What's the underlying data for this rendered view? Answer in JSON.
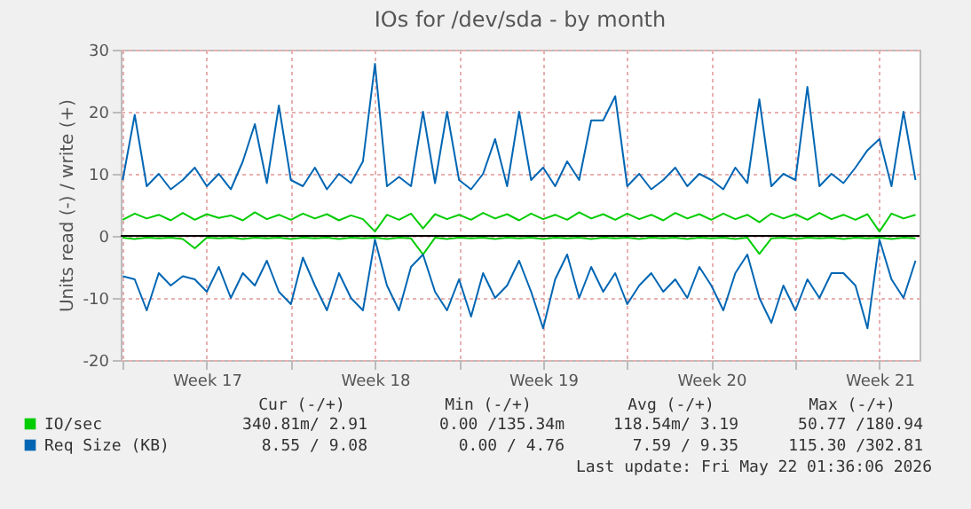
{
  "chart_data": {
    "type": "line",
    "title": "IOs for /dev/sda - by month",
    "ylabel": "Units read (-) / write (+)",
    "x": [
      "2026-04-20T00:00",
      "2026-04-20T12:00",
      "2026-04-21T00:00",
      "2026-04-21T12:00",
      "2026-04-22T00:00",
      "2026-04-22T12:00",
      "2026-04-23T00:00",
      "2026-04-23T12:00",
      "2026-04-24T00:00",
      "2026-04-24T12:00",
      "2026-04-25T00:00",
      "2026-04-25T12:00",
      "2026-04-26T00:00",
      "2026-04-26T12:00",
      "2026-04-27T00:00",
      "2026-04-27T12:00",
      "2026-04-28T00:00",
      "2026-04-28T12:00",
      "2026-04-29T00:00",
      "2026-04-29T12:00",
      "2026-04-30T00:00",
      "2026-04-30T12:00",
      "2026-05-01T00:00",
      "2026-05-01T12:00",
      "2026-05-02T00:00",
      "2026-05-02T12:00",
      "2026-05-03T00:00",
      "2026-05-03T12:00",
      "2026-05-04T00:00",
      "2026-05-04T12:00",
      "2026-05-05T00:00",
      "2026-05-05T12:00",
      "2026-05-06T00:00",
      "2026-05-06T12:00",
      "2026-05-07T00:00",
      "2026-05-07T12:00",
      "2026-05-08T00:00",
      "2026-05-08T12:00",
      "2026-05-09T00:00",
      "2026-05-09T12:00",
      "2026-05-10T00:00",
      "2026-05-10T12:00",
      "2026-05-11T00:00",
      "2026-05-11T12:00",
      "2026-05-12T00:00",
      "2026-05-12T12:00",
      "2026-05-13T00:00",
      "2026-05-13T12:00",
      "2026-05-14T00:00",
      "2026-05-14T12:00",
      "2026-05-15T00:00",
      "2026-05-15T12:00",
      "2026-05-16T00:00",
      "2026-05-16T12:00",
      "2026-05-17T00:00",
      "2026-05-17T12:00",
      "2026-05-18T00:00",
      "2026-05-18T12:00",
      "2026-05-19T00:00",
      "2026-05-19T12:00",
      "2026-05-20T00:00",
      "2026-05-20T12:00",
      "2026-05-21T00:00",
      "2026-05-21T12:00",
      "2026-05-22T00:00",
      "2026-05-22T12:00",
      "2026-05-23T00:00"
    ],
    "series": [
      {
        "color": "#00cc00",
        "values": [
          -0.3,
          -0.5,
          -0.3,
          -0.4,
          -0.3,
          -0.5,
          -2,
          -0.3,
          -0.4,
          -0.3,
          -0.5,
          -0.3,
          -0.4,
          -0.3,
          -0.5,
          -0.3,
          -0.4,
          -0.3,
          -0.5,
          -0.3,
          -0.4,
          -0.3,
          -0.5,
          -0.3,
          -0.4,
          -3,
          -0.3,
          -0.5,
          -0.3,
          -0.4,
          -0.3,
          -0.5,
          -0.3,
          -0.4,
          -0.3,
          -0.5,
          -0.3,
          -0.4,
          -0.3,
          -0.5,
          -0.3,
          -0.4,
          -0.3,
          -0.5,
          -0.3,
          -0.4,
          -0.3,
          -0.5,
          -0.3,
          -0.4,
          -0.3,
          -0.5,
          -0.3,
          -2.9,
          -0.4,
          -0.3,
          -0.5,
          -0.3,
          -0.4,
          -0.3,
          -0.5,
          -0.3,
          -0.4,
          -0.3,
          -0.5,
          -0.3,
          -0.4
        ]
      },
      {
        "name": "IO/sec",
        "color": "#00cc00",
        "values": [
          2.6,
          3.6,
          2.8,
          3.4,
          2.5,
          3.7,
          2.6,
          3.5,
          2.9,
          3.3,
          2.5,
          3.8,
          2.7,
          3.4,
          2.6,
          3.6,
          2.8,
          3.5,
          2.5,
          3.3,
          2.7,
          0.7,
          3.4,
          2.6,
          3.6,
          1.2,
          3.5,
          2.7,
          3.4,
          2.6,
          3.7,
          2.8,
          3.5,
          2.5,
          3.6,
          2.7,
          3.4,
          2.6,
          3.8,
          2.8,
          3.5,
          2.6,
          3.6,
          2.7,
          3.4,
          2.5,
          3.7,
          2.8,
          3.5,
          2.6,
          3.6,
          2.7,
          3.4,
          2.2,
          3.6,
          2.8,
          3.5,
          2.6,
          3.7,
          2.7,
          3.4,
          2.6,
          3.5,
          0.7,
          3.6,
          2.8,
          3.4
        ]
      },
      {
        "color": "#0066b3",
        "values": [
          -6.5,
          -7,
          -12,
          -6,
          -8,
          -6.5,
          -7,
          -9,
          -5,
          -10,
          -6,
          -8,
          -4,
          -9,
          -11,
          -3.5,
          -8,
          -12,
          -6,
          -10,
          -12,
          -0.6,
          -8,
          -12,
          -5,
          -3,
          -9,
          -12,
          -7,
          -13,
          -6,
          -10,
          -8,
          -4,
          -9,
          -14.9,
          -7,
          -3,
          -10,
          -5,
          -9,
          -6,
          -11,
          -8,
          -6,
          -9,
          -7,
          -10,
          -5,
          -8,
          -12,
          -6,
          -3,
          -10,
          -14,
          -8,
          -12,
          -7,
          -10,
          -6,
          -6,
          -8,
          -14.9,
          -0.6,
          -7,
          -10,
          -4
        ]
      },
      {
        "name": "Req Size (KB)",
        "color": "#0066b3",
        "values": [
          9,
          19.5,
          8,
          10,
          7.5,
          9,
          11,
          8,
          10,
          7.5,
          12,
          18,
          8.5,
          21,
          9,
          8,
          11,
          7.5,
          10,
          8.5,
          12,
          27.7,
          8,
          9.5,
          8,
          20,
          8.5,
          20,
          9,
          7.5,
          10,
          15.6,
          8,
          20,
          9,
          11,
          8,
          12,
          9,
          18.6,
          18.6,
          22.5,
          8,
          10,
          7.5,
          9,
          11,
          8,
          10,
          9,
          7.5,
          11,
          8.5,
          22,
          8,
          10,
          9,
          24,
          8,
          10,
          8.5,
          11,
          13.8,
          15.6,
          8,
          20,
          9
        ]
      }
    ],
    "xlim": [
      "2026-04-19T22:00",
      "2026-05-23T04:00"
    ],
    "xticks": [
      {
        "value": "2026-04-20T00:00",
        "label": null
      },
      {
        "value": "2026-04-23T12:00",
        "label": "Week 17"
      },
      {
        "value": "2026-04-27T00:00",
        "label": null
      },
      {
        "value": "2026-04-30T12:00",
        "label": "Week 18"
      },
      {
        "value": "2026-05-04T00:00",
        "label": null
      },
      {
        "value": "2026-05-07T12:00",
        "label": "Week 19"
      },
      {
        "value": "2026-05-11T00:00",
        "label": null
      },
      {
        "value": "2026-05-14T12:00",
        "label": "Week 20"
      },
      {
        "value": "2026-05-18T00:00",
        "label": null
      },
      {
        "value": "2026-05-21T12:00",
        "label": "Week 21"
      }
    ],
    "ylim": [
      -20,
      30
    ],
    "yticks": [
      -20,
      -10,
      0,
      10,
      20,
      30
    ],
    "grid": true,
    "legend": "bottom",
    "ref_lines": [
      {
        "axis": "y",
        "value": 0,
        "color": "#000000"
      }
    ],
    "annotations": [
      "Cur (-/+)",
      "Min (-/+)",
      "Avg (-/+)",
      "Max (-/+)",
      "340.81m/  2.91",
      "0.00 /135.34m",
      "118.54m/  3.19",
      "50.77 /180.94",
      "8.55 /  9.08",
      "0.00 /  4.76",
      "7.59 /  9.35",
      "115.30 /302.81",
      "Last update: Fri May 22 01:36:06 2026"
    ]
  }
}
